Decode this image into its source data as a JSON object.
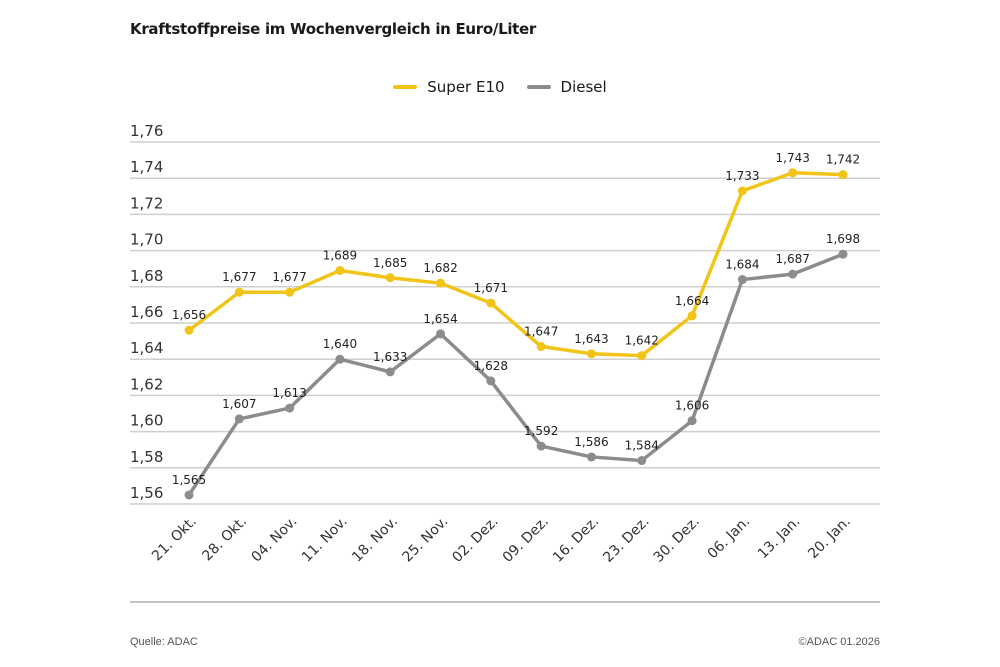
{
  "title": "Kraftstoffpreise im Wochenvergleich in Euro/Liter",
  "legend": [
    {
      "label": "Super E10",
      "color": "#f2c418"
    },
    {
      "label": "Diesel",
      "color": "#8c8c8c"
    }
  ],
  "footer": {
    "source": "Quelle: ADAC",
    "copyright": "©ADAC 01.2026"
  },
  "chart_data": {
    "type": "line",
    "title": "Kraftstoffpreise im Wochenvergleich in Euro/Liter",
    "xlabel": "",
    "ylabel": "",
    "ylim": [
      1.56,
      1.76
    ],
    "yticks": [
      "1,56",
      "1,58",
      "1,60",
      "1,62",
      "1,64",
      "1,66",
      "1,68",
      "1,70",
      "1,72",
      "1,74",
      "1,76"
    ],
    "grid": true,
    "legend_position": "top",
    "categories": [
      "21. Okt.",
      "28. Okt.",
      "04. Nov.",
      "11. Nov.",
      "18. Nov.",
      "25. Nov.",
      "02. Dez.",
      "09. Dez.",
      "16. Dez.",
      "23. Dez.",
      "30. Dez.",
      "06. Jan.",
      "13. Jan.",
      "20. Jan."
    ],
    "series": [
      {
        "name": "Super E10",
        "color": "#f2c418",
        "values": [
          1.656,
          1.677,
          1.677,
          1.689,
          1.685,
          1.682,
          1.671,
          1.647,
          1.643,
          1.642,
          1.664,
          1.733,
          1.743,
          1.742
        ],
        "labels": [
          "1,656",
          "1,677",
          "1,677",
          "1,689",
          "1,685",
          "1,682",
          "1,671",
          "1,647",
          "1,643",
          "1,642",
          "1,664",
          "1,733",
          "1,743",
          "1,742"
        ]
      },
      {
        "name": "Diesel",
        "color": "#8c8c8c",
        "values": [
          1.565,
          1.607,
          1.613,
          1.64,
          1.633,
          1.654,
          1.628,
          1.592,
          1.586,
          1.584,
          1.606,
          1.684,
          1.687,
          1.698
        ],
        "labels": [
          "1,565",
          "1,607",
          "1,613",
          "1,640",
          "1,633",
          "1,654",
          "1,628",
          "1,592",
          "1,586",
          "1,584",
          "1,606",
          "1,684",
          "1,687",
          "1,698"
        ]
      }
    ]
  }
}
